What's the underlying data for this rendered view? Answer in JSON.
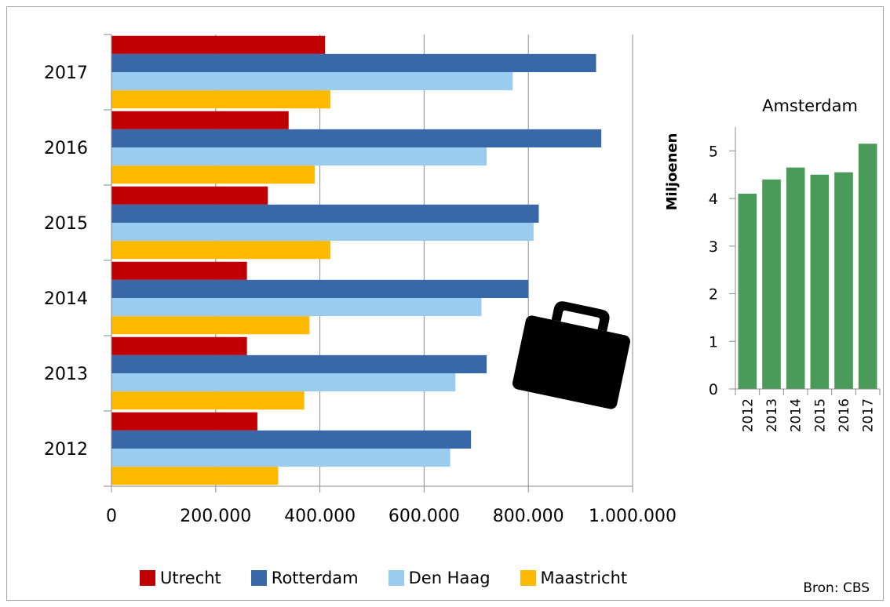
{
  "chart_data": [
    {
      "type": "bar",
      "orientation": "horizontal",
      "categories": [
        "2012",
        "2013",
        "2014",
        "2015",
        "2016",
        "2017"
      ],
      "series": [
        {
          "name": "Utrecht",
          "color": "#c00000",
          "values": [
            280000,
            260000,
            260000,
            300000,
            340000,
            410000
          ]
        },
        {
          "name": "Rotterdam",
          "color": "#3868a8",
          "values": [
            690000,
            720000,
            800000,
            820000,
            940000,
            930000
          ]
        },
        {
          "name": "Den Haag",
          "color": "#99ccee",
          "values": [
            650000,
            660000,
            710000,
            810000,
            720000,
            770000
          ]
        },
        {
          "name": "Maastricht",
          "color": "#ffb900",
          "values": [
            320000,
            370000,
            380000,
            420000,
            390000,
            420000
          ]
        }
      ],
      "x_ticks": [
        "0",
        "200.000",
        "400.000",
        "600.000",
        "800.000",
        "1.000.000"
      ],
      "xlim": [
        0,
        1000000
      ],
      "grid": "vertical",
      "legend": "bottom"
    },
    {
      "type": "bar",
      "title": "Amsterdam",
      "ylabel": "Miljoenen",
      "categories": [
        "2012",
        "2013",
        "2014",
        "2015",
        "2016",
        "2017"
      ],
      "values": [
        4.1,
        4.4,
        4.65,
        4.5,
        4.55,
        5.15
      ],
      "color": "#4a9a5a",
      "y_ticks": [
        "0",
        "1",
        "2",
        "3",
        "4",
        "5"
      ],
      "ylim": [
        0,
        5.5
      ]
    }
  ],
  "icon": "briefcase-icon",
  "source": "Bron: CBS"
}
